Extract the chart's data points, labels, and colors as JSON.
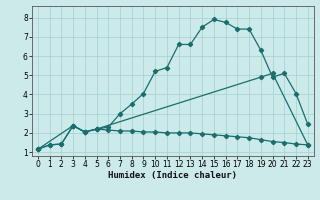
{
  "xlabel": "Humidex (Indice chaleur)",
  "bg_color": "#cceaea",
  "grid_color": "#aad4d4",
  "line_color": "#1a6e6e",
  "xlim": [
    -0.5,
    23.5
  ],
  "ylim": [
    0.8,
    8.6
  ],
  "xticks": [
    0,
    1,
    2,
    3,
    4,
    5,
    6,
    7,
    8,
    9,
    10,
    11,
    12,
    13,
    14,
    15,
    16,
    17,
    18,
    19,
    20,
    21,
    22,
    23
  ],
  "yticks": [
    1,
    2,
    3,
    4,
    5,
    6,
    7,
    8
  ],
  "curve1_x": [
    0,
    1,
    2,
    3,
    4,
    5,
    6,
    7,
    8,
    9,
    10,
    11,
    12,
    13,
    14,
    15,
    16,
    17,
    18,
    19,
    20,
    21,
    22,
    23
  ],
  "curve1_y": [
    1.15,
    1.38,
    1.42,
    2.38,
    2.05,
    2.2,
    2.3,
    3.0,
    3.5,
    4.05,
    5.2,
    5.4,
    6.6,
    6.6,
    7.5,
    7.9,
    7.75,
    7.4,
    7.4,
    6.3,
    4.9,
    5.1,
    4.05,
    2.45
  ],
  "curve2_x": [
    0,
    3,
    4,
    5,
    19,
    20,
    23
  ],
  "curve2_y": [
    1.15,
    2.38,
    2.05,
    2.2,
    4.9,
    5.1,
    1.38
  ],
  "curve3_x": [
    0,
    1,
    2,
    3,
    4,
    5,
    6,
    7,
    8,
    9,
    10,
    11,
    12,
    13,
    14,
    15,
    16,
    17,
    18,
    19,
    20,
    21,
    22,
    23
  ],
  "curve3_y": [
    1.15,
    1.38,
    1.42,
    2.38,
    2.05,
    2.2,
    2.15,
    2.1,
    2.1,
    2.05,
    2.05,
    2.0,
    2.0,
    2.0,
    1.95,
    1.9,
    1.85,
    1.8,
    1.75,
    1.65,
    1.55,
    1.5,
    1.42,
    1.38
  ]
}
